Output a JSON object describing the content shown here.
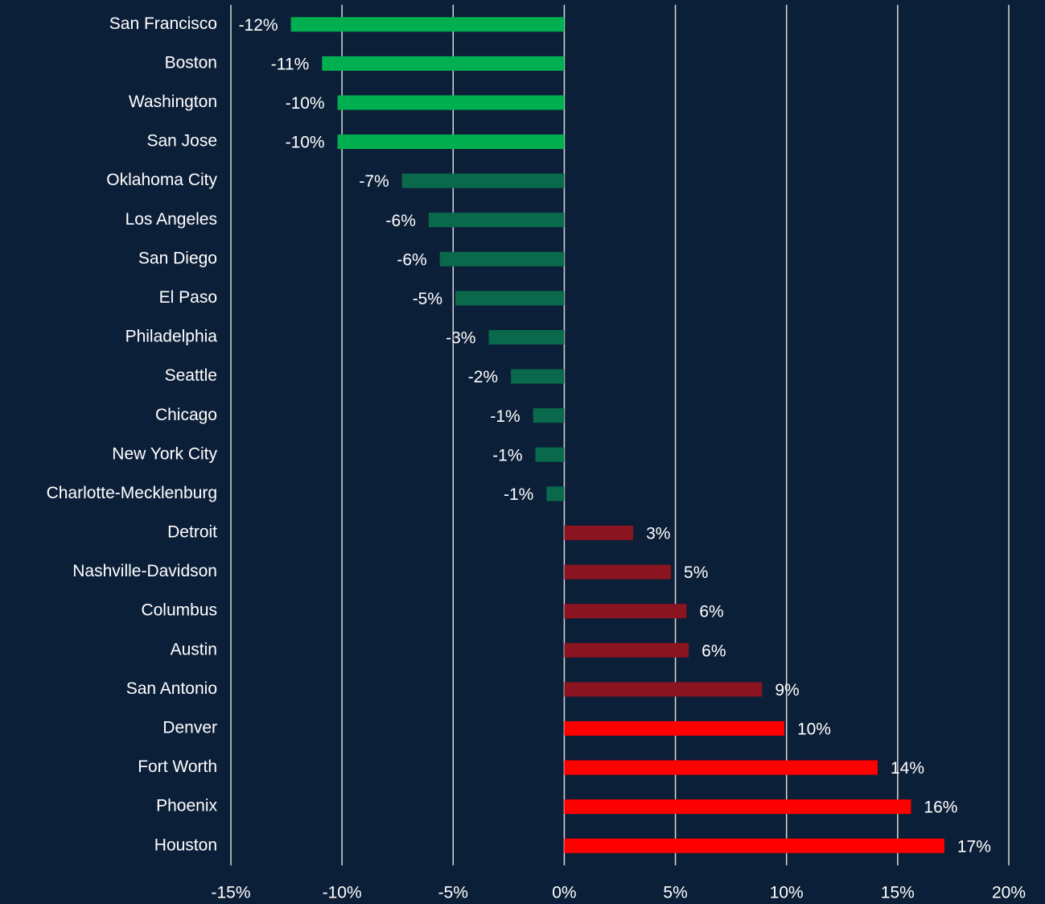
{
  "chart_data": {
    "type": "bar",
    "orientation": "horizontal",
    "categories": [
      "San Francisco",
      "Boston",
      "Washington",
      "San Jose",
      "Oklahoma City",
      "Los Angeles",
      "San Diego",
      "El Paso",
      "Philadelphia",
      "Seattle",
      "Chicago",
      "New York City",
      "Charlotte-Mecklenburg",
      "Detroit",
      "Nashville-Davidson",
      "Columbus",
      "Austin",
      "San Antonio",
      "Denver",
      "Fort Worth",
      "Phoenix",
      "Houston"
    ],
    "values": [
      -12.3,
      -10.9,
      -10.2,
      -10.2,
      -7.3,
      -6.1,
      -5.6,
      -4.9,
      -3.4,
      -2.4,
      -1.4,
      -1.3,
      -0.8,
      3.1,
      4.8,
      5.5,
      5.6,
      8.9,
      9.9,
      14.1,
      15.6,
      17.1
    ],
    "value_labels": [
      "-12%",
      "-11%",
      "-10%",
      "-10%",
      "-7%",
      "-6%",
      "-6%",
      "-5%",
      "-3%",
      "-2%",
      "-1%",
      "-1%",
      "-1%",
      "3%",
      "5%",
      "6%",
      "6%",
      "9%",
      "10%",
      "14%",
      "16%",
      "17%"
    ],
    "colors": [
      "#00b050",
      "#00b050",
      "#00b050",
      "#00b050",
      "#09694a",
      "#09694a",
      "#09694a",
      "#09694a",
      "#09694a",
      "#09694a",
      "#09694a",
      "#09694a",
      "#09694a",
      "#8a1420",
      "#8a1420",
      "#8a1420",
      "#8a1420",
      "#8a1420",
      "#ff0000",
      "#ff0000",
      "#ff0000",
      "#ff0000"
    ],
    "xlim": [
      -15,
      20
    ],
    "xticks": [
      {
        "value": -15,
        "label": "-15%"
      },
      {
        "value": -10,
        "label": "-10%"
      },
      {
        "value": -5,
        "label": "-5%"
      },
      {
        "value": 0,
        "label": "0%"
      },
      {
        "value": 5,
        "label": "5%"
      },
      {
        "value": 10,
        "label": "10%"
      },
      {
        "value": 15,
        "label": "15%"
      },
      {
        "value": 20,
        "label": "20%"
      }
    ],
    "grid": true
  }
}
